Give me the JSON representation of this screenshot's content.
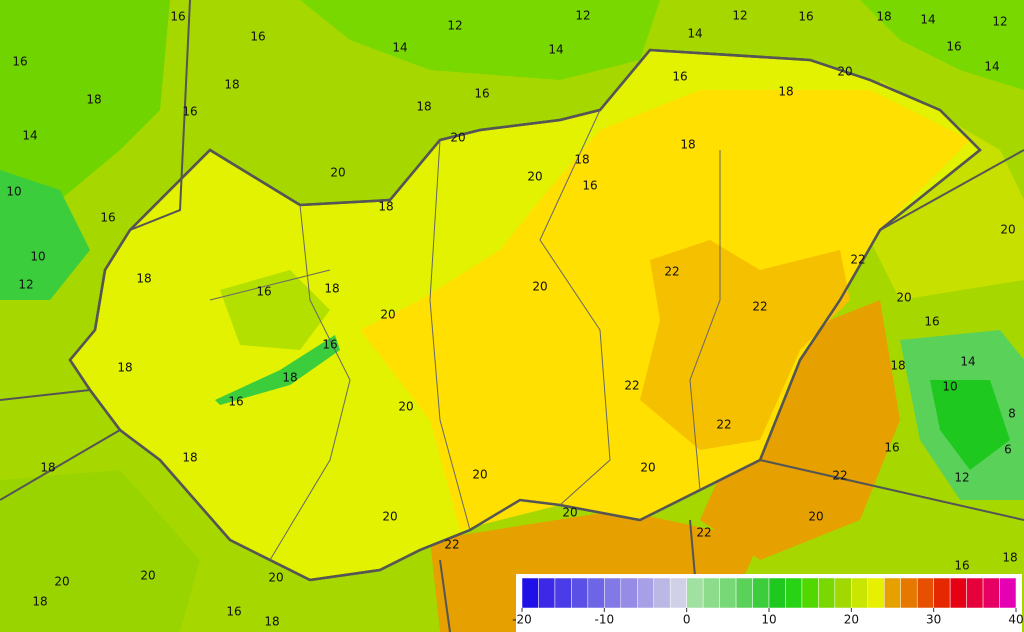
{
  "contour_labels": [
    16,
    16,
    16,
    12,
    12,
    12,
    16,
    18,
    14,
    12,
    14,
    14,
    14,
    16,
    14,
    20,
    16,
    18,
    18,
    18,
    16,
    18,
    16,
    14,
    20,
    18,
    18,
    16,
    20,
    20,
    10,
    16,
    18,
    20,
    10,
    12,
    18,
    22,
    22,
    16,
    18,
    20,
    20,
    22,
    16,
    20,
    16,
    14,
    18,
    18,
    18,
    22,
    10,
    16,
    20,
    8,
    22,
    6,
    18,
    16,
    20,
    20,
    18,
    22,
    12,
    20,
    20,
    20,
    22,
    22,
    18,
    16,
    20,
    20,
    20,
    18,
    16,
    18,
    22,
    14
  ],
  "colorbar": {
    "ticks": [
      -20,
      -10,
      0,
      10,
      20,
      30,
      40
    ],
    "lim": [
      -20,
      40
    ],
    "step": 2,
    "colors": [
      "#1e10e6",
      "#3c28e6",
      "#4a3ce6",
      "#5a50e6",
      "#6e64e6",
      "#8278e6",
      "#968ce6",
      "#a8a0e6",
      "#bcb8e6",
      "#d0d0e6",
      "#a0e0a0",
      "#8cdc8c",
      "#78d878",
      "#5ad25a",
      "#3ccd3c",
      "#1ec81e",
      "#28d214",
      "#50d800",
      "#78d800",
      "#a0d800",
      "#c8e600",
      "#e6f000",
      "#e6a000",
      "#e67800",
      "#e65000",
      "#e62800",
      "#e60014",
      "#e6003c",
      "#e60064",
      "#e600b4"
    ]
  }
}
